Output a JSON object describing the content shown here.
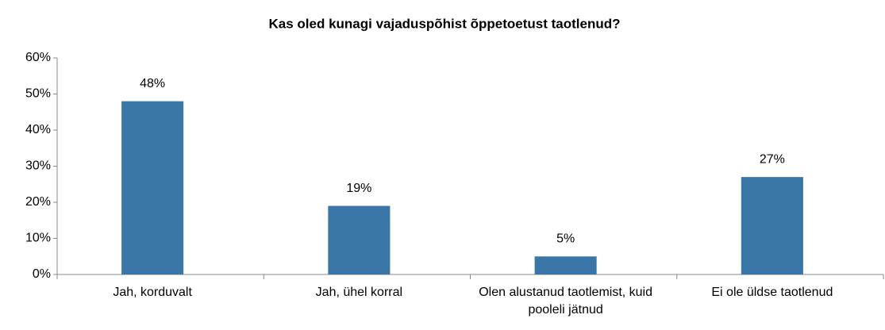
{
  "chart_data": {
    "type": "bar",
    "title": "Kas oled kunagi vajaduspõhist õppetoetust taotlenud?",
    "categories": [
      "Jah, korduvalt",
      "Jah, ühel korral",
      "Olen alustanud taotlemist, kuid pooleli jätnud",
      "Ei ole üldse taotlenud"
    ],
    "values": [
      48,
      19,
      5,
      27
    ],
    "value_labels": [
      "48%",
      "19%",
      "5%",
      "27%"
    ],
    "color": "#3a76a7",
    "ylim": [
      0,
      60
    ],
    "yticks": [
      {
        "value": 0,
        "label": "0%"
      },
      {
        "value": 10,
        "label": "10%"
      },
      {
        "value": 20,
        "label": "20%"
      },
      {
        "value": 30,
        "label": "30%"
      },
      {
        "value": 40,
        "label": "40%"
      },
      {
        "value": 50,
        "label": "50%"
      },
      {
        "value": 60,
        "label": "60%"
      }
    ],
    "grid": false
  }
}
